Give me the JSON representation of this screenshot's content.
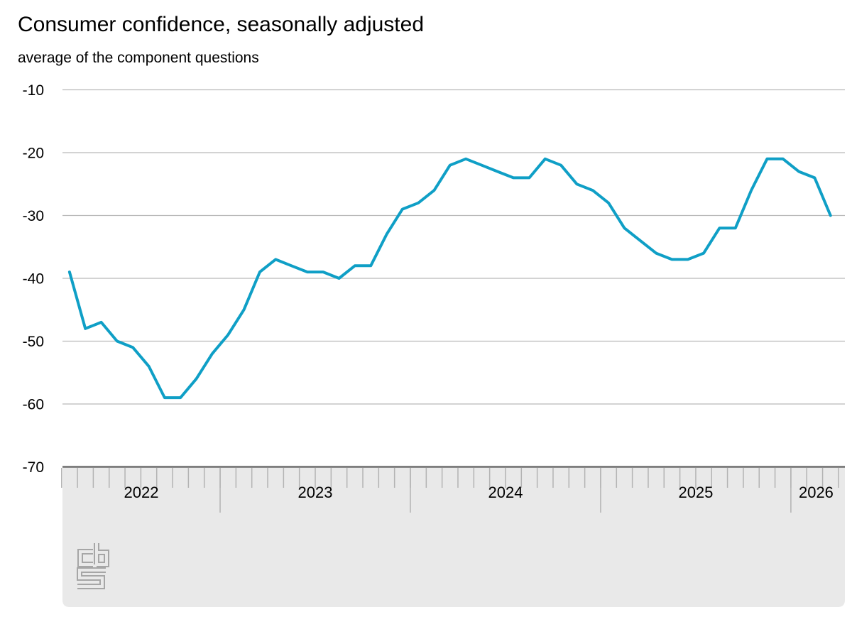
{
  "header": {
    "title": "Consumer confidence, seasonally adjusted",
    "subtitle": "average of the component questions"
  },
  "footer": {
    "logo": "CBS"
  },
  "chart_data": {
    "type": "line",
    "title": "Consumer confidence, seasonally adjusted",
    "subtitle": "average of the component questions",
    "legend": "none",
    "grid": "horizontal",
    "ylim": [
      -70,
      -10
    ],
    "y_ticks": [
      -10,
      -20,
      -30,
      -40,
      -50,
      -60,
      -70
    ],
    "year_labels": [
      "2022",
      "2023",
      "2024",
      "2025",
      "2026"
    ],
    "x_range": [
      "2022-03",
      "2026-03"
    ],
    "line_color": "#0f9fc6",
    "gridline_color": "#b9b9b9",
    "axis_line_color": "#6e6e6e",
    "band_color": "#e9e9e9",
    "tick_color": "#b3b3b3",
    "series": [
      {
        "name": "Consumer confidence (average of the component questions, seasonally adjusted)",
        "points": [
          [
            "2022-03",
            -39
          ],
          [
            "2022-04",
            -48
          ],
          [
            "2022-05",
            -47
          ],
          [
            "2022-06",
            -50
          ],
          [
            "2022-07",
            -51
          ],
          [
            "2022-08",
            -54
          ],
          [
            "2022-09",
            -59
          ],
          [
            "2022-10",
            -59
          ],
          [
            "2022-11",
            -56
          ],
          [
            "2022-12",
            -52
          ],
          [
            "2023-01",
            -49
          ],
          [
            "2023-02",
            -45
          ],
          [
            "2023-03",
            -39
          ],
          [
            "2023-04",
            -37
          ],
          [
            "2023-05",
            -38
          ],
          [
            "2023-06",
            -39
          ],
          [
            "2023-07",
            -39
          ],
          [
            "2023-08",
            -40
          ],
          [
            "2023-09",
            -38
          ],
          [
            "2023-10",
            -38
          ],
          [
            "2023-11",
            -33
          ],
          [
            "2023-12",
            -29
          ],
          [
            "2024-01",
            -28
          ],
          [
            "2024-02",
            -26
          ],
          [
            "2024-03",
            -22
          ],
          [
            "2024-04",
            -21
          ],
          [
            "2024-05",
            -22
          ],
          [
            "2024-06",
            -23
          ],
          [
            "2024-07",
            -24
          ],
          [
            "2024-08",
            -24
          ],
          [
            "2024-09",
            -21
          ],
          [
            "2024-10",
            -22
          ],
          [
            "2024-11",
            -25
          ],
          [
            "2024-12",
            -26
          ],
          [
            "2025-01",
            -28
          ],
          [
            "2025-02",
            -32
          ],
          [
            "2025-03",
            -34
          ],
          [
            "2025-04",
            -36
          ],
          [
            "2025-05",
            -37
          ],
          [
            "2025-06",
            -37
          ],
          [
            "2025-07",
            -36
          ],
          [
            "2025-08",
            -32
          ],
          [
            "2025-09",
            -32
          ],
          [
            "2025-10",
            -26
          ],
          [
            "2025-11",
            -21
          ],
          [
            "2025-12",
            -21
          ],
          [
            "2026-01",
            -23
          ],
          [
            "2026-02",
            -24
          ],
          [
            "2026-03",
            -30
          ]
        ]
      }
    ]
  }
}
